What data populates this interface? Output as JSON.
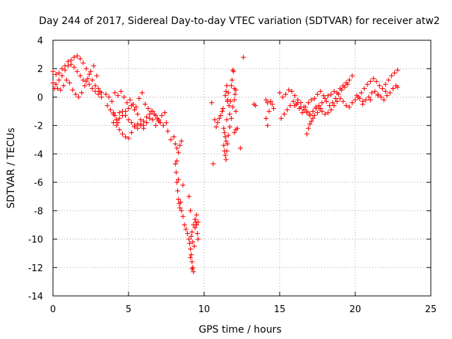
{
  "chart_data": {
    "type": "scatter",
    "title": "Day 244 of 2017, Sidereal Day-to-day VTEC variation (SDTVAR) for receiver atw2",
    "xlabel": "GPS time / hours",
    "ylabel": "SDTVAR / TECUs",
    "xlim": [
      0,
      25
    ],
    "ylim": [
      -14,
      4
    ],
    "xticks": [
      0,
      5,
      10,
      15,
      20,
      25
    ],
    "yticks": [
      -14,
      -12,
      -10,
      -8,
      -6,
      -4,
      -2,
      0,
      2,
      4
    ],
    "grid": true,
    "marker": "+",
    "color": "#ff0000",
    "series": [
      {
        "name": "SDTVAR",
        "x": [
          0.0,
          0.2,
          0.4,
          0.6,
          0.8,
          1.0,
          1.2,
          1.4,
          1.6,
          1.8,
          2.0,
          2.2,
          2.4,
          2.6,
          2.8,
          3.0,
          3.2,
          0.0,
          0.2,
          0.4,
          0.6,
          0.8,
          1.0,
          1.2,
          1.4,
          1.6,
          1.8,
          2.0,
          2.2,
          2.4,
          2.6,
          2.8,
          3.0,
          3.2,
          0.1,
          0.3,
          0.5,
          0.7,
          0.9,
          1.1,
          1.3,
          1.5,
          1.7,
          1.9,
          2.1,
          2.3,
          2.5,
          2.7,
          2.9,
          3.1,
          3.5,
          3.7,
          3.9,
          4.1,
          4.3,
          4.5,
          4.7,
          4.9,
          5.1,
          5.3,
          5.5,
          5.7,
          5.9,
          6.1,
          6.3,
          6.5,
          6.7,
          6.9,
          7.1,
          7.3,
          3.6,
          3.8,
          4.0,
          4.2,
          4.4,
          4.6,
          4.8,
          5.0,
          5.2,
          5.4,
          5.6,
          5.8,
          6.0,
          6.2,
          6.4,
          6.6,
          6.8,
          7.0,
          7.2,
          7.4,
          4.0,
          4.2,
          4.4,
          4.6,
          4.8,
          5.0,
          5.2,
          5.4,
          5.6,
          5.8,
          6.0,
          6.2,
          6.4,
          6.6,
          6.8,
          7.0,
          4.0,
          4.1,
          4.2,
          4.3,
          4.4,
          4.6,
          4.8,
          5.0,
          5.2,
          5.4,
          5.6,
          5.8,
          6.0,
          7.5,
          7.6,
          7.8,
          8.0,
          8.1,
          8.2,
          8.3,
          8.4,
          8.5,
          8.1,
          8.15,
          8.2,
          8.25,
          8.3,
          8.35,
          8.4,
          8.45,
          8.5,
          8.6,
          8.7,
          8.8,
          8.9,
          9.0,
          9.05,
          9.1,
          9.15,
          9.2,
          9.25,
          9.3,
          9.35,
          9.4,
          9.45,
          9.5,
          9.55,
          9.6,
          8.2,
          8.3,
          8.6,
          9.0,
          9.1,
          9.2,
          9.3,
          9.4,
          9.5,
          9.6,
          9.15,
          9.25,
          9.1,
          9.2,
          10.6,
          10.7,
          10.8,
          10.9,
          11.0,
          11.1,
          11.2,
          11.25,
          11.3,
          11.35,
          11.4,
          11.45,
          11.5,
          11.55,
          11.6,
          11.65,
          11.7,
          11.75,
          11.8,
          11.85,
          11.9,
          11.95,
          12.0,
          12.1,
          11.3,
          11.35,
          11.4,
          11.45,
          11.5,
          11.55,
          11.6,
          11.7,
          11.8,
          11.9,
          12.0,
          12.05,
          12.1,
          10.5,
          11.4,
          11.45,
          11.5,
          11.55,
          12.0,
          12.1,
          12.2,
          12.4,
          12.6,
          13.3,
          13.4,
          14.1,
          14.2,
          14.3,
          14.4,
          14.5,
          14.6,
          14.1,
          14.2,
          15.0,
          15.2,
          15.4,
          15.6,
          15.8,
          16.0,
          16.2,
          16.4,
          16.6,
          16.8,
          17.0,
          17.2,
          17.4,
          17.6,
          17.8,
          18.0,
          18.2,
          18.4,
          18.6,
          18.8,
          19.0,
          19.2,
          19.4,
          19.6,
          19.8,
          15.1,
          15.3,
          15.5,
          15.7,
          15.9,
          16.1,
          16.3,
          16.5,
          16.7,
          16.9,
          17.1,
          17.3,
          17.5,
          17.7,
          17.9,
          18.1,
          18.3,
          18.5,
          18.7,
          18.9,
          19.1,
          19.3,
          19.5,
          16.0,
          16.2,
          16.4,
          16.6,
          16.8,
          17.0,
          17.2,
          17.4,
          17.6,
          17.8,
          18.0,
          18.2,
          18.4,
          18.6,
          18.8,
          19.0,
          19.2,
          19.4,
          19.6,
          19.8,
          16.8,
          16.9,
          17.0,
          17.1,
          17.2,
          17.3,
          17.5,
          17.7,
          20.0,
          20.2,
          20.4,
          20.6,
          20.8,
          21.0,
          21.2,
          21.4,
          21.6,
          21.8,
          22.0,
          22.2,
          22.4,
          22.6,
          22.8,
          20.1,
          20.3,
          20.5,
          20.7,
          20.9,
          21.1,
          21.3,
          21.5,
          21.7,
          21.9,
          22.1,
          22.3,
          22.5,
          22.7,
          20.5,
          21.0,
          21.5,
          22.0,
          22.5,
          22.8
        ],
        "y": [
          1.8,
          1.6,
          1.7,
          2.0,
          2.2,
          2.5,
          2.6,
          2.8,
          2.9,
          2.7,
          2.4,
          2.0,
          1.6,
          1.2,
          0.8,
          0.6,
          0.3,
          1.0,
          0.9,
          1.2,
          1.5,
          1.9,
          2.2,
          2.3,
          2.1,
          1.8,
          1.5,
          1.2,
          1.1,
          0.9,
          0.6,
          0.4,
          0.2,
          0.0,
          0.6,
          0.6,
          0.5,
          0.8,
          1.2,
          1.0,
          0.5,
          0.2,
          0.0,
          0.3,
          0.8,
          1.3,
          1.8,
          2.2,
          1.5,
          0.4,
          0.2,
          0.0,
          -0.3,
          0.3,
          0.1,
          0.4,
          0.0,
          -0.4,
          -0.2,
          -0.5,
          -0.7,
          -0.1,
          0.3,
          -0.5,
          -0.8,
          -1.0,
          -1.2,
          -1.5,
          -1.8,
          -2.0,
          -0.6,
          -0.9,
          -1.2,
          -1.6,
          -1.1,
          -1.0,
          -1.3,
          -1.6,
          -1.8,
          -2.0,
          -2.2,
          -1.9,
          -1.7,
          -1.4,
          -1.2,
          -1.0,
          -1.3,
          -1.6,
          -1.3,
          -1.1,
          -1.8,
          -2.0,
          -2.3,
          -2.6,
          -2.8,
          -2.9,
          -2.5,
          -2.1,
          -1.9,
          -2.0,
          -2.2,
          -1.8,
          -1.5,
          -1.6,
          -2.0,
          -1.7,
          -1.1,
          -1.3,
          -1.6,
          -1.8,
          -1.5,
          -1.3,
          -1.0,
          -0.8,
          -0.6,
          -0.9,
          -1.2,
          -1.6,
          -2.0,
          -1.8,
          -2.4,
          -3.0,
          -2.8,
          -3.3,
          -3.6,
          -3.9,
          -3.4,
          -3.1,
          -4.7,
          -5.3,
          -6.0,
          -6.6,
          -7.2,
          -7.5,
          -7.8,
          -7.4,
          -8.0,
          -8.4,
          -9.0,
          -9.3,
          -9.6,
          -10.0,
          -10.3,
          -10.7,
          -11.1,
          -11.6,
          -12.0,
          -12.3,
          -10.5,
          -9.2,
          -8.8,
          -8.3,
          -9.6,
          -10.0,
          -4.5,
          -5.8,
          -6.2,
          -7.0,
          -8.0,
          -9.5,
          -9.0,
          -8.6,
          -9.0,
          -8.8,
          -9.8,
          -10.2,
          -11.3,
          -12.1,
          -4.7,
          -1.6,
          -2.1,
          -1.8,
          -1.5,
          -1.3,
          -1.0,
          -0.8,
          -2.2,
          -2.5,
          -2.8,
          -3.1,
          -1.6,
          -0.2,
          0.3,
          -0.6,
          -1.2,
          -0.3,
          0.8,
          1.2,
          1.9,
          1.8,
          0.6,
          -1.0,
          -3.4,
          -3.8,
          -4.1,
          -4.4,
          -3.8,
          -3.3,
          -2.7,
          -2.1,
          -1.5,
          -0.7,
          -0.2,
          0.2,
          0.5,
          -0.4,
          0.1,
          0.4,
          0.8,
          -0.3,
          -2.5,
          -2.3,
          -2.2,
          -3.6,
          2.8,
          -0.5,
          -0.6,
          -1.5,
          -2.0,
          -1.0,
          -0.3,
          -0.5,
          -0.8,
          -0.2,
          -0.4,
          0.3,
          0.0,
          0.2,
          0.5,
          0.4,
          0.1,
          -0.2,
          -0.4,
          -0.7,
          -1.0,
          -1.2,
          -1.0,
          -0.8,
          -0.6,
          -0.4,
          -0.1,
          0.1,
          0.2,
          0.4,
          0.3,
          0.6,
          0.8,
          1.0,
          1.2,
          1.5,
          -1.5,
          -1.2,
          -0.9,
          -0.6,
          -0.3,
          -0.5,
          -0.8,
          -1.1,
          -0.7,
          -0.4,
          -0.2,
          -0.1,
          0.2,
          0.4,
          0.1,
          -0.3,
          -0.6,
          -0.4,
          -0.1,
          0.2,
          0.5,
          0.7,
          0.9,
          -0.6,
          -0.4,
          -0.7,
          -0.9,
          -1.1,
          -1.3,
          -1.0,
          -0.7,
          -0.8,
          -1.0,
          -1.2,
          -1.1,
          -0.9,
          -0.6,
          -0.3,
          -0.1,
          -0.3,
          -0.6,
          -0.7,
          -0.4,
          -2.6,
          -2.2,
          -1.9,
          -1.7,
          -1.5,
          -1.3,
          -1.1,
          -0.8,
          -0.2,
          0.0,
          0.3,
          0.6,
          0.9,
          1.1,
          1.3,
          1.1,
          0.8,
          0.6,
          0.9,
          1.2,
          1.5,
          1.7,
          1.9,
          0.1,
          -0.1,
          -0.3,
          -0.2,
          0.0,
          0.3,
          0.4,
          0.2,
          0.0,
          -0.2,
          0.1,
          0.3,
          0.6,
          0.8,
          -0.5,
          -0.2,
          0.1,
          0.4,
          0.6,
          0.7
        ]
      }
    ]
  }
}
